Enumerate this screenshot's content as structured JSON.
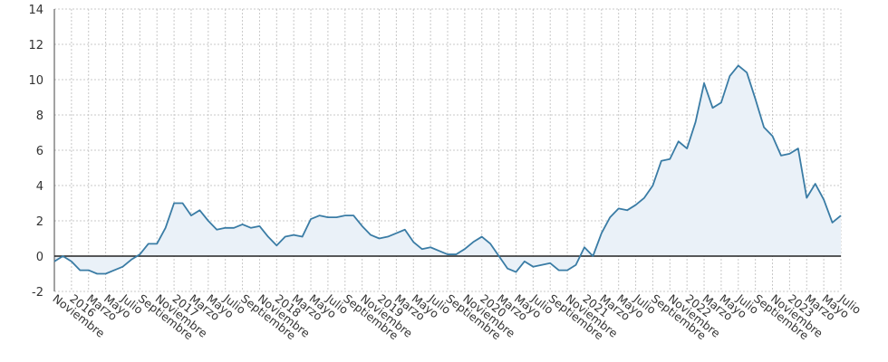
{
  "chart_data": {
    "type": "area",
    "title": "",
    "xlabel": "",
    "ylabel": "",
    "ylim": [
      -2,
      14
    ],
    "yticks": [
      -2,
      0,
      2,
      4,
      6,
      8,
      10,
      12,
      14
    ],
    "grid": true,
    "x_start": "2015-11",
    "x_end": "2023-07",
    "x_tick_labels": [
      "Noviembre",
      "2016",
      "Marzo",
      "Mayo",
      "Julio",
      "Septiembre",
      "Noviembre",
      "2017",
      "Marzo",
      "Mayo",
      "Julio",
      "Septiembre",
      "Noviembre",
      "2018",
      "Marzo",
      "Mayo",
      "Julio",
      "Septiembre",
      "Noviembre",
      "2019",
      "Marzo",
      "Mayo",
      "Julio",
      "Septiembre",
      "Noviembre",
      "2020",
      "Marzo",
      "Mayo",
      "Julio",
      "Septiembre",
      "Noviembre",
      "2021",
      "Marzo",
      "Mayo",
      "Julio",
      "Septiembre",
      "Noviembre",
      "2022",
      "Marzo",
      "Mayo",
      "Julio",
      "Septiembre",
      "Noviembre",
      "2023",
      "Marzo",
      "Mayo",
      "Julio"
    ],
    "series": [
      {
        "line_color": "#3a7ca5",
        "fill_color": "#eaf1f8",
        "values": [
          -0.3,
          0.0,
          -0.3,
          -0.8,
          -0.8,
          -1.0,
          -1.0,
          -0.8,
          -0.6,
          -0.2,
          0.1,
          0.7,
          0.7,
          1.6,
          3.0,
          3.0,
          2.3,
          2.6,
          2.0,
          1.5,
          1.6,
          1.6,
          1.8,
          1.6,
          1.7,
          1.1,
          0.6,
          1.1,
          1.2,
          1.1,
          2.1,
          2.3,
          2.2,
          2.2,
          2.3,
          2.3,
          1.7,
          1.2,
          1.0,
          1.1,
          1.3,
          1.5,
          0.8,
          0.4,
          0.5,
          0.3,
          0.1,
          0.1,
          0.4,
          0.8,
          1.1,
          0.7,
          0.0,
          -0.7,
          -0.9,
          -0.3,
          -0.6,
          -0.5,
          -0.4,
          -0.8,
          -0.8,
          -0.5,
          0.5,
          0.0,
          1.3,
          2.2,
          2.7,
          2.6,
          2.9,
          3.3,
          4.0,
          5.4,
          5.5,
          6.5,
          6.1,
          7.6,
          9.8,
          8.4,
          8.7,
          10.2,
          10.8,
          10.4,
          8.9,
          7.3,
          6.8,
          5.7,
          5.8,
          6.1,
          3.3,
          4.1,
          3.2,
          1.9,
          2.3
        ]
      }
    ]
  }
}
